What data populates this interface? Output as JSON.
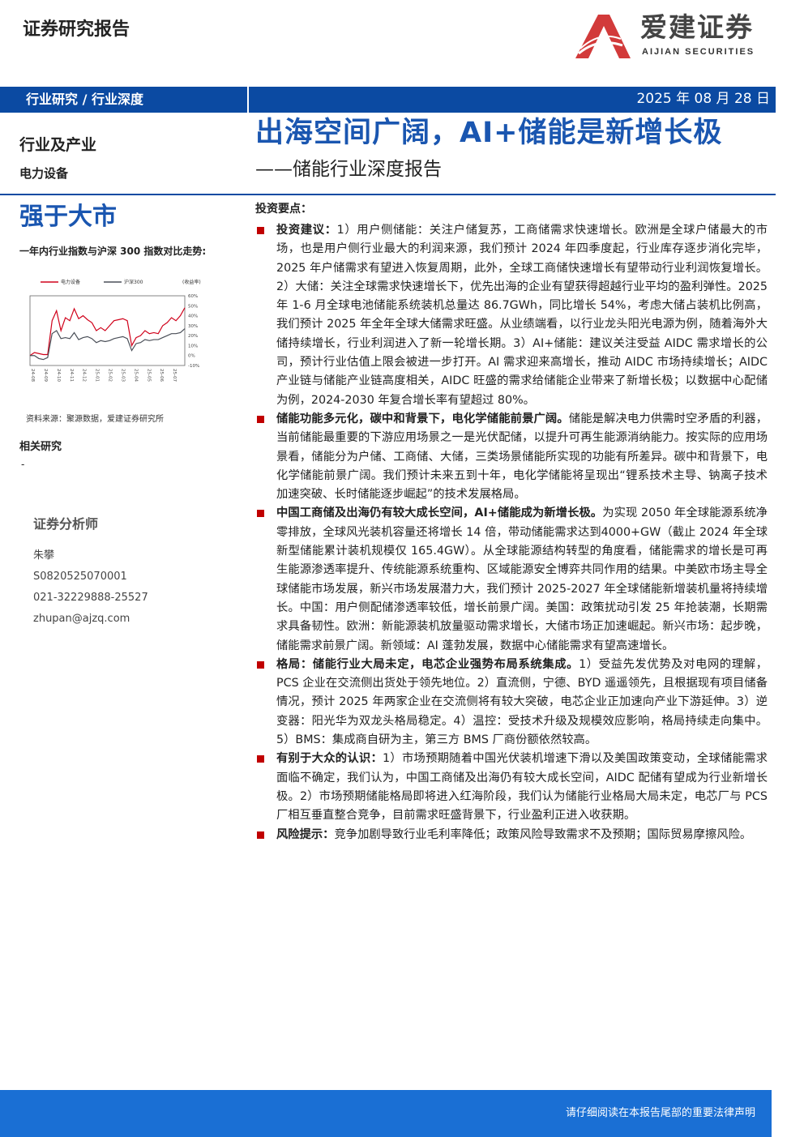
{
  "header": {
    "doc_type": "证券研究报告",
    "logo_cn": "爱建证券",
    "logo_en": "AIJIAN SECURITIES",
    "category": "行业研究 / 行业深度",
    "date": "2025 年 08 月 28 日",
    "title": "出海空间广阔，AI+储能是新增长极",
    "subtitle": "——储能行业深度报告"
  },
  "sidebar": {
    "industry": "行业及产业",
    "sector": "电力设备",
    "rating": "强于大市",
    "chart_title": "一年内行业指数与沪深 300 指数对比走势:",
    "source": "资料来源：聚源数据，爱建证券研究所",
    "related_title": "相关研究",
    "related_item": "-",
    "analyst_title": "证券分析师",
    "analyst_name": "朱攀",
    "analyst_cert": "S0820525070001",
    "analyst_phone": "021-32229888-25527",
    "analyst_email": "zhupan@ajzq.com"
  },
  "chart_data": {
    "type": "line",
    "legend": [
      "电力设备",
      "沪深300",
      "(收益率)"
    ],
    "ylim": [
      -10,
      60
    ],
    "yticks": [
      "60%",
      "50%",
      "40%",
      "30%",
      "20%",
      "10%",
      "0%",
      "-10%"
    ],
    "xticks": [
      "24-08",
      "24-09",
      "24-10",
      "24-11",
      "24-12",
      "25-01",
      "25-02",
      "25-03",
      "25-04",
      "25-05",
      "25-06",
      "25-07"
    ],
    "series": [
      {
        "name": "电力设备",
        "color": "#d0021b",
        "values": [
          0,
          3,
          2,
          1,
          1,
          35,
          45,
          25,
          38,
          35,
          47,
          37,
          40,
          36,
          33,
          25,
          28,
          25,
          30,
          35,
          36,
          37,
          35,
          10,
          18,
          20,
          25,
          22,
          23,
          22,
          30,
          33,
          38,
          35,
          40,
          48
        ]
      },
      {
        "name": "沪深300",
        "color": "#4a4f58",
        "values": [
          0,
          0,
          -3,
          -4,
          -2,
          22,
          25,
          17,
          18,
          17,
          23,
          16,
          18,
          19,
          17,
          13,
          15,
          14,
          15,
          17,
          18,
          19,
          17,
          5,
          12,
          13,
          16,
          15,
          16,
          16,
          18,
          20,
          22,
          22,
          23,
          27
        ]
      }
    ]
  },
  "main": {
    "points_title": "投资要点：",
    "bullets": [
      {
        "lead": "投资建议：",
        "text": "1）用户侧储能：关注户储复苏，工商储需求快速增长。欧洲是全球户储最大的市场，也是用户侧行业最大的利润来源，我们预计 2024 年四季度起，行业库存逐步消化完毕，2025 年户储需求有望进入恢复周期，此外，全球工商储快速增长有望带动行业利润恢复增长。2）大储：关注全球需求快速增长下，优先出海的企业有望获得超越行业平均的盈利弹性。2025 年 1-6 月全球电池储能系统装机总量达 86.7GWh，同比增长 54%，考虑大储占装机比例高，我们预计 2025 年全年全球大储需求旺盛。从业绩端看，以行业龙头阳光电源为例，随着海外大储持续增长，行业利润进入了新一轮增长期。3）AI+储能：建议关注受益 AIDC 需求增长的公司，预计行业估值上限会被进一步打开。AI 需求迎来高增长，推动 AIDC 市场持续增长；AIDC 产业链与储能产业链高度相关，AIDC 旺盛的需求给储能企业带来了新增长极；以数据中心配储为例，2024-2030 年复合增长率有望超过 80%。"
      },
      {
        "lead": "储能功能多元化，碳中和背景下，电化学储能前景广阔。",
        "text": "储能是解决电力供需时空矛盾的利器，当前储能最重要的下游应用场景之一是光伏配储，以提升可再生能源消纳能力。按实际的应用场景看，储能分为户储、工商储、大储，三类场景储能所实现的功能有所差异。碳中和背景下，电化学储能前景广阔。我们预计未来五到十年，电化学储能将呈现出“锂系技术主导、钠离子技术加速突破、长时储能逐步崛起”的技术发展格局。"
      },
      {
        "lead": "中国工商储及出海仍有较大成长空间，AI+储能成为新增长极。",
        "text": "为实现 2050 年全球能源系统净零排放，全球风光装机容量还将增长 14 倍，带动储能需求达到4000+GW（截止 2024 年全球新型储能累计装机规模仅 165.4GW）。从全球能源结构转型的角度看，储能需求的增长是可再生能源渗透率提升、传统能源系统重构、区域能源安全博弈共同作用的结果。中美欧市场主导全球储能市场发展，新兴市场发展潜力大，我们预计 2025-2027 年全球储能新增装机量将持续增长。中国：用户侧配储渗透率较低，增长前景广阔。美国：政策扰动引发 25 年抢装潮，长期需求具备韧性。欧洲：新能源装机放量驱动需求增长，大储市场正加速崛起。新兴市场：起步晚，储能需求前景广阔。新领域：AI 蓬勃发展，数据中心储能需求有望高速增长。"
      },
      {
        "lead": "格局：储能行业大局未定，电芯企业强势布局系统集成。",
        "text": "1）受益先发优势及对电网的理解，PCS 企业在交流侧出货处于领先地位。2）直流侧，宁德、BYD 遥遥领先，且根据现有项目储备情况，预计 2025 年两家企业在交流侧将有较大突破，电芯企业正加速向产业下游延伸。3）逆变器：阳光华为双龙头格局稳定。4）温控：受技术升级及规模效应影响，格局持续走向集中。5）BMS：集成商自研为主，第三方 BMS 厂商份额依然较高。"
      },
      {
        "lead": "有别于大众的认识：",
        "text": "1）市场预期随着中国光伏装机增速下滑以及美国政策变动，全球储能需求面临不确定，我们认为，中国工商储及出海仍有较大成长空间，AIDC 配储有望成为行业新增长极。2）市场预期储能格局即将进入红海阶段，我们认为储能行业格局大局未定，电芯厂与 PCS 厂相互垂直整合竞争，目前需求旺盛背景下，行业盈利正进入收获期。"
      },
      {
        "lead": "风险提示：",
        "text": "竞争加剧导致行业毛利率降低；政策风险导致需求不及预期；国际贸易摩擦风险。"
      }
    ]
  },
  "footer": {
    "disclaimer": "请仔细阅读在本报告尾部的重要法律声明"
  },
  "colors": {
    "brand_blue": "#0b4aa2",
    "title_blue": "#1a56b0",
    "bullet_red": "#c00000",
    "footer_blue": "#1a6fd4"
  }
}
